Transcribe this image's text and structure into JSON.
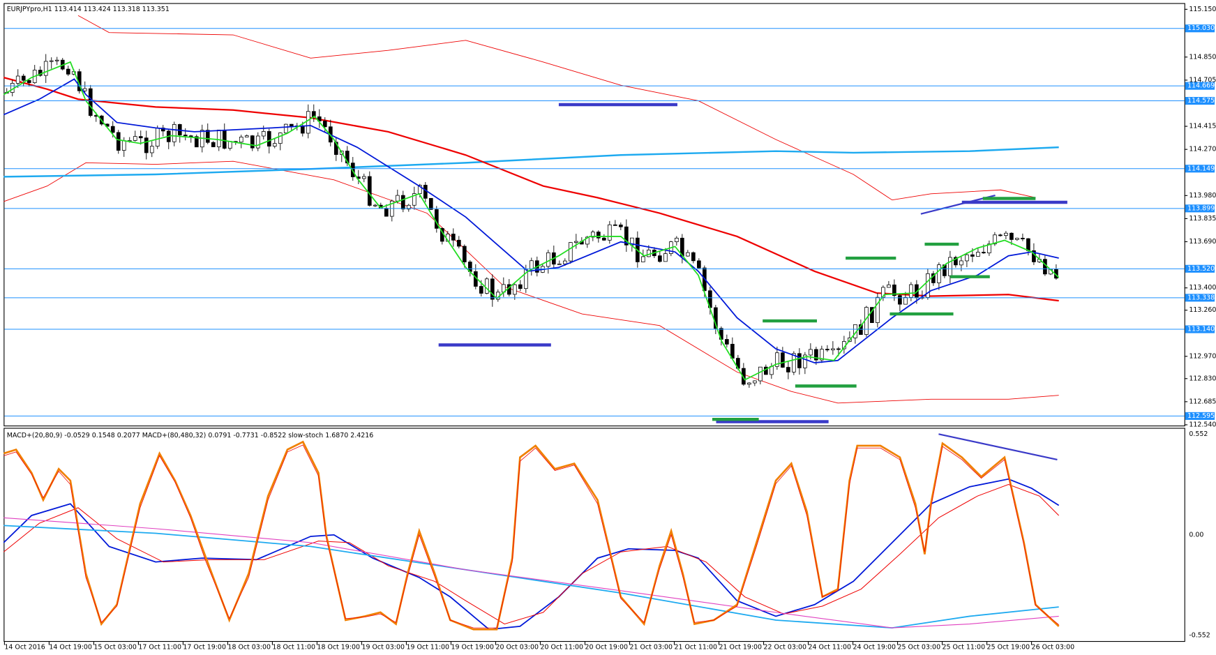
{
  "header": {
    "title": "EURJPYpro,H1  113.414 113.424 113.318 113.351"
  },
  "price_axis": {
    "labels": [
      "115.150",
      "114.850",
      "114.705",
      "114.415",
      "114.270",
      "113.980",
      "113.835",
      "113.690",
      "113.400",
      "113.260",
      "112.970",
      "112.830",
      "112.685",
      "112.540"
    ],
    "highlighted": [
      "115.030",
      "114.669",
      "114.575",
      "114.149",
      "113.899",
      "113.520",
      "113.338",
      "113.140",
      "112.595"
    ]
  },
  "indicator": {
    "header": "MACD+(20,80,9) -0.0529 0.1548 0.2077  MACD+(80,480,32) 0.0791 -0.7731 -0.8522  slow-stoch 1.6870 2.4216",
    "axis_labels": [
      "0.552",
      "0.00",
      "-0.552"
    ]
  },
  "time_axis": {
    "labels": [
      "14 Oct 2016",
      "14 Oct 19:00",
      "15 Oct 03:00",
      "17 Oct 11:00",
      "17 Oct 19:00",
      "18 Oct 03:00",
      "18 Oct 11:00",
      "18 Oct 19:00",
      "19 Oct 03:00",
      "19 Oct 11:00",
      "19 Oct 19:00",
      "20 Oct 03:00",
      "20 Oct 11:00",
      "20 Oct 19:00",
      "21 Oct 03:00",
      "21 Oct 11:00",
      "21 Oct 19:00",
      "22 Oct 03:00",
      "24 Oct 11:00",
      "24 Oct 19:00",
      "25 Oct 03:00",
      "25 Oct 11:00",
      "25 Oct 19:00",
      "26 Oct 03:00"
    ]
  }
}
